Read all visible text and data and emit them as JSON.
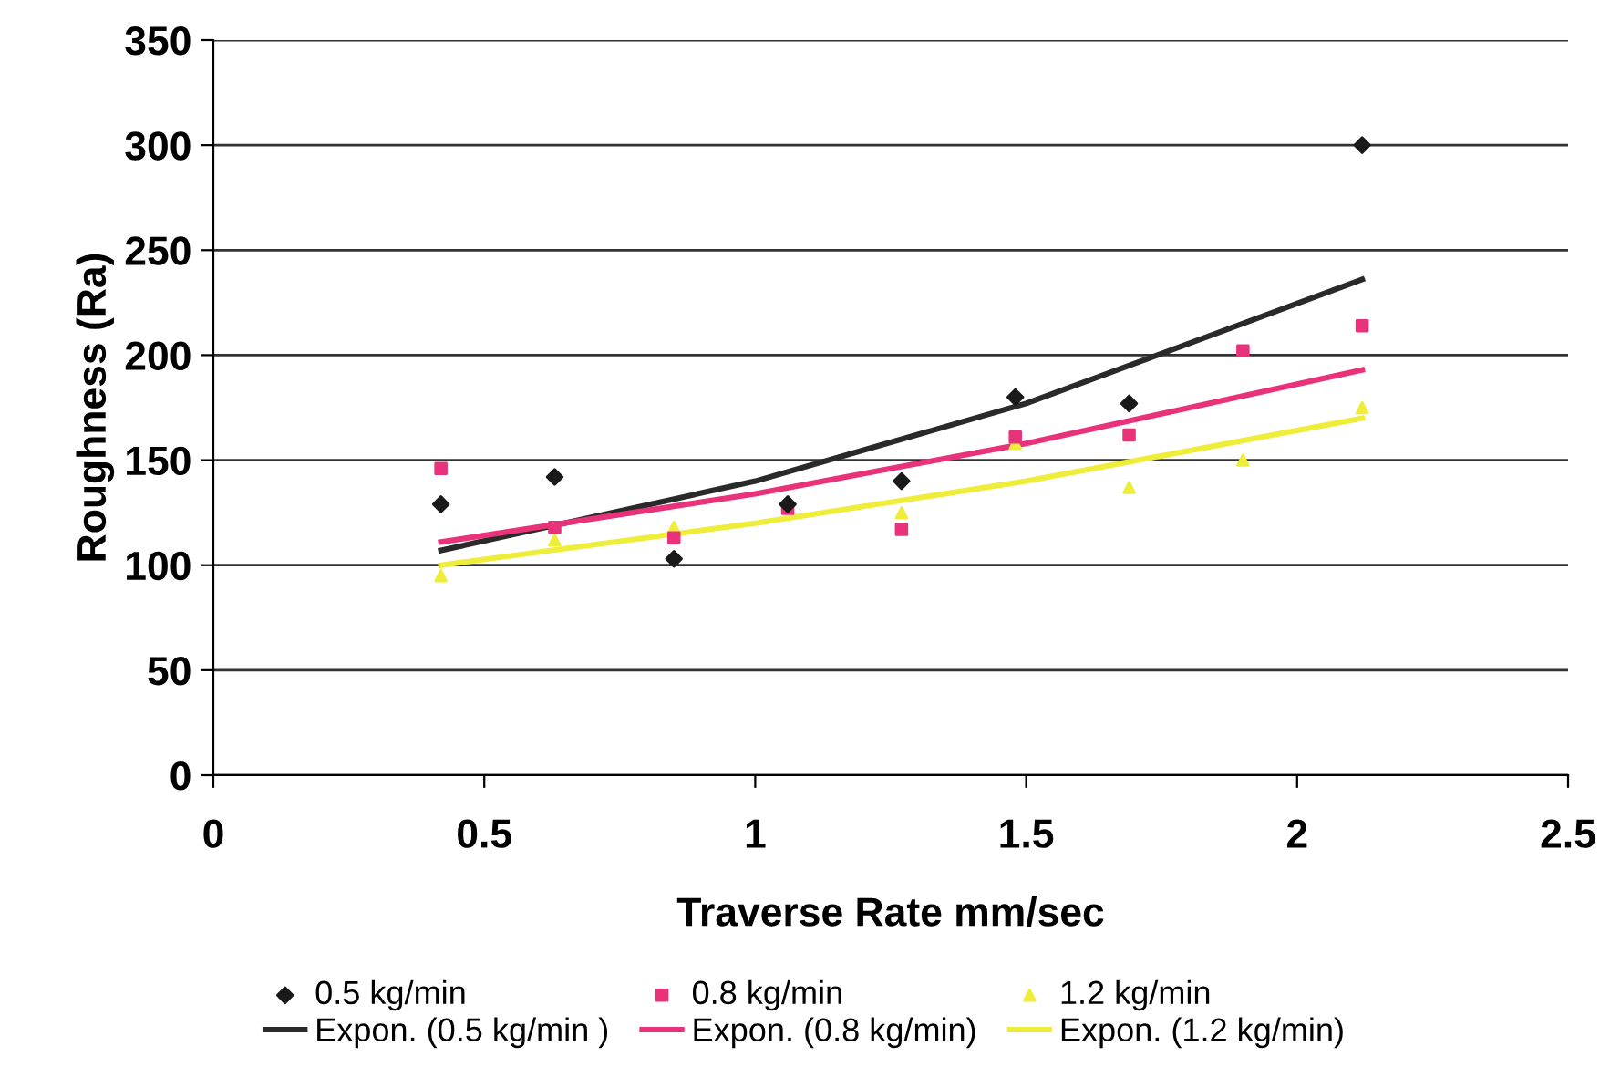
{
  "chart_data": {
    "type": "scatter",
    "xlabel": "Traverse Rate mm/sec",
    "ylabel": "Roughness (Ra)",
    "xlim": [
      0,
      2.5
    ],
    "xticks": [
      0,
      0.5,
      1,
      1.5,
      2,
      2.5
    ],
    "ylim": [
      0,
      350
    ],
    "yticks": [
      0,
      50,
      100,
      150,
      200,
      250,
      300,
      350
    ],
    "grid": "y",
    "legend": "bottom",
    "series": [
      {
        "name": "0.5 kg/min",
        "marker": "diamond",
        "color": "#1a1a1a",
        "x": [
          0.42,
          0.63,
          0.85,
          1.06,
          1.27,
          1.48,
          1.69,
          2.12
        ],
        "values": [
          129,
          142,
          103,
          129,
          140,
          180,
          177,
          300
        ]
      },
      {
        "name": "Expon. (0.5 kg/min )",
        "type": "line",
        "marker": "none",
        "color": "#2a2a2a",
        "x": [
          0.42,
          1.0,
          1.5,
          2.12
        ],
        "values": [
          107,
          140,
          177,
          236
        ]
      },
      {
        "name": "0.8 kg/min",
        "marker": "square",
        "color": "#e8337a",
        "x": [
          0.42,
          0.63,
          0.85,
          1.06,
          1.27,
          1.48,
          1.69,
          1.9,
          2.12
        ],
        "values": [
          146,
          118,
          113,
          127,
          117,
          161,
          162,
          202,
          214
        ]
      },
      {
        "name": "Expon. (0.8 kg/min)",
        "type": "line",
        "marker": "none",
        "color": "#e8337a",
        "x": [
          0.42,
          1.0,
          1.5,
          2.12
        ],
        "values": [
          111,
          134,
          158,
          193
        ]
      },
      {
        "name": "1.2 kg/min",
        "marker": "triangle",
        "color": "#eeee3a",
        "x": [
          0.42,
          0.63,
          0.85,
          1.06,
          1.27,
          1.48,
          1.69,
          1.9,
          2.12
        ],
        "values": [
          95,
          112,
          118,
          null,
          125,
          158,
          137,
          150,
          175
        ]
      },
      {
        "name": "Expon. (1.2 kg/min)",
        "type": "line",
        "marker": "none",
        "color": "#eeee3a",
        "x": [
          0.42,
          1.0,
          1.5,
          2.12
        ],
        "values": [
          100,
          120,
          140,
          170
        ]
      }
    ]
  }
}
